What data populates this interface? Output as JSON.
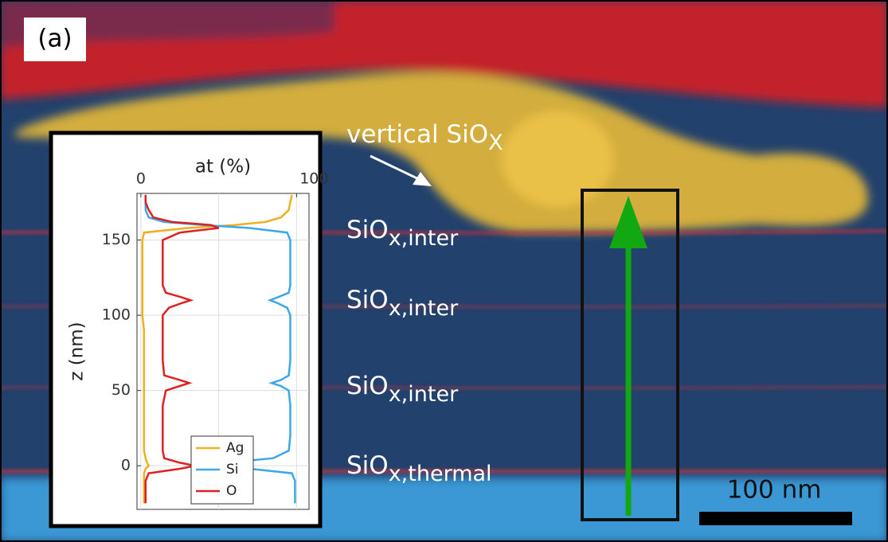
{
  "panel_label": "(a)",
  "annotations": [
    {
      "text": "vertical SiO",
      "sub": "X"
    },
    {
      "text": "SiO",
      "sub": "x,inter"
    },
    {
      "text": "SiO",
      "sub": "x,inter"
    },
    {
      "text": "SiO",
      "sub": "x,inter"
    },
    {
      "text": "SiO",
      "sub": "x,thermal"
    }
  ],
  "scale_bar": {
    "label": "100 nm"
  },
  "chart_data": {
    "type": "line",
    "x_label": "at (%)",
    "y_label": "z (nm)",
    "xlim": [
      -2.5,
      108
    ],
    "ylim": [
      -29,
      181
    ],
    "xticks": [
      0,
      100
    ],
    "xgrid": [
      50
    ],
    "yticks": [
      0,
      50,
      100,
      150
    ],
    "grid": true,
    "legend": "bottom-right",
    "z": [
      -25,
      -20,
      -15,
      -10,
      -5,
      -2,
      0,
      2,
      5,
      10,
      20,
      30,
      40,
      50,
      53,
      55,
      57,
      60,
      70,
      80,
      90,
      100,
      105,
      108,
      110,
      112,
      115,
      120,
      130,
      140,
      150,
      155,
      158,
      160,
      162,
      165,
      170,
      175,
      180
    ],
    "series": [
      {
        "name": "Ag",
        "color": "#edb120",
        "values": [
          2,
          2,
          2,
          2,
          2,
          3,
          5,
          4,
          3,
          2,
          2,
          2,
          2,
          2,
          2,
          2,
          2,
          2,
          2,
          2,
          2,
          1,
          1,
          1,
          1,
          1,
          1,
          1,
          1,
          1,
          1,
          2,
          30,
          60,
          80,
          90,
          95,
          96,
          97
        ]
      },
      {
        "name": "Si",
        "color": "#3aa9e6",
        "values": [
          99,
          99,
          99,
          99,
          97,
          70,
          33,
          55,
          85,
          95,
          96,
          96,
          96,
          95,
          90,
          84,
          90,
          95,
          96,
          96,
          96,
          96,
          94,
          88,
          83,
          88,
          95,
          96,
          96,
          96,
          96,
          94,
          70,
          40,
          15,
          5,
          3,
          3,
          3
        ]
      },
      {
        "name": "O",
        "color": "#e02020",
        "values": [
          3,
          3,
          3,
          3,
          5,
          25,
          35,
          25,
          15,
          14,
          14,
          14,
          14,
          16,
          25,
          31,
          25,
          15,
          14,
          14,
          14,
          14,
          18,
          26,
          32,
          26,
          16,
          14,
          14,
          14,
          14,
          25,
          50,
          45,
          20,
          8,
          5,
          3,
          3
        ]
      }
    ]
  }
}
